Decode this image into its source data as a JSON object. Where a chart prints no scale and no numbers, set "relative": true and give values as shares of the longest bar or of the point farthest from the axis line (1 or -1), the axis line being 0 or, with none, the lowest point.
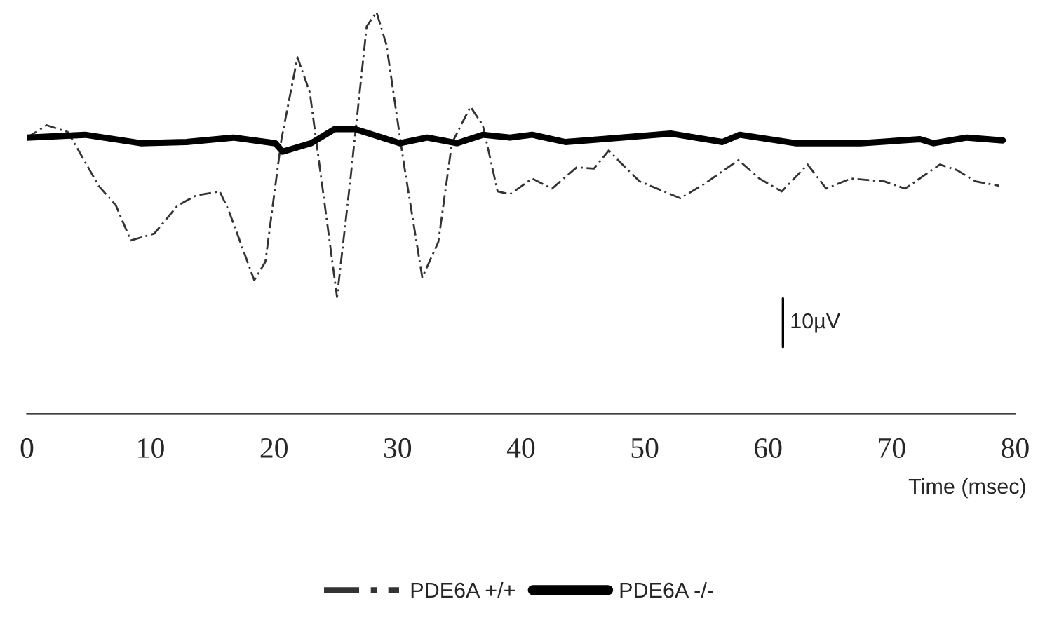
{
  "chart_data": {
    "type": "line",
    "relative": true,
    "xlabel": "Time (msec)",
    "xlim": [
      0,
      80
    ],
    "xticks": [
      0,
      10,
      20,
      30,
      40,
      50,
      60,
      70,
      80
    ],
    "grid": false,
    "legend": "bottom",
    "annotations": [
      "10µV"
    ],
    "series": [
      {
        "name": "PDE6A +/+",
        "color": "#333333",
        "line_style": "dashed",
        "x": [
          0,
          1.6,
          3.3,
          4.1,
          5.8,
          7.2,
          8.4,
          10.3,
          12.2,
          13.7,
          15.6,
          16.3,
          18.4,
          19.3,
          20.6,
          21.9,
          22.9,
          25.1,
          26.2,
          27.5,
          28.3,
          29.1,
          30.5,
          32.0,
          33.3,
          34.4,
          35.9,
          36.9,
          38.1,
          39.1,
          40.9,
          42.5,
          44.5,
          45.9,
          47.1,
          48.2,
          49.6,
          52.9,
          54.8,
          57.6,
          59.3,
          61.1,
          63.2,
          64.7,
          66.7,
          69.4,
          71.1,
          73.9,
          75.3,
          76.8,
          78.7
        ],
        "values": [
          0.688,
          0.719,
          0.702,
          0.66,
          0.568,
          0.519,
          0.432,
          0.449,
          0.519,
          0.544,
          0.554,
          0.509,
          0.333,
          0.379,
          0.684,
          0.888,
          0.8,
          0.291,
          0.589,
          0.965,
          1.0,
          0.919,
          0.625,
          0.34,
          0.428,
          0.674,
          0.765,
          0.719,
          0.554,
          0.547,
          0.586,
          0.561,
          0.614,
          0.611,
          0.656,
          0.621,
          0.579,
          0.537,
          0.572,
          0.632,
          0.586,
          0.554,
          0.621,
          0.561,
          0.586,
          0.579,
          0.561,
          0.621,
          0.607,
          0.579,
          0.568
        ]
      },
      {
        "name": "PDE6A -/-",
        "color": "#000000",
        "line_style": "solid",
        "x": [
          0,
          4.7,
          9.2,
          12.9,
          16.7,
          20.1,
          20.7,
          23.0,
          24.9,
          26.6,
          30.2,
          32.4,
          34.8,
          36.9,
          39.1,
          40.9,
          43.6,
          46.5,
          52.1,
          56.3,
          57.7,
          62.2,
          67.5,
          72.3,
          73.4,
          76.1,
          79.0
        ],
        "values": [
          0.688,
          0.695,
          0.674,
          0.677,
          0.688,
          0.674,
          0.653,
          0.674,
          0.709,
          0.709,
          0.674,
          0.688,
          0.674,
          0.695,
          0.688,
          0.695,
          0.677,
          0.684,
          0.698,
          0.677,
          0.695,
          0.674,
          0.674,
          0.684,
          0.674,
          0.688,
          0.681
        ]
      }
    ]
  }
}
